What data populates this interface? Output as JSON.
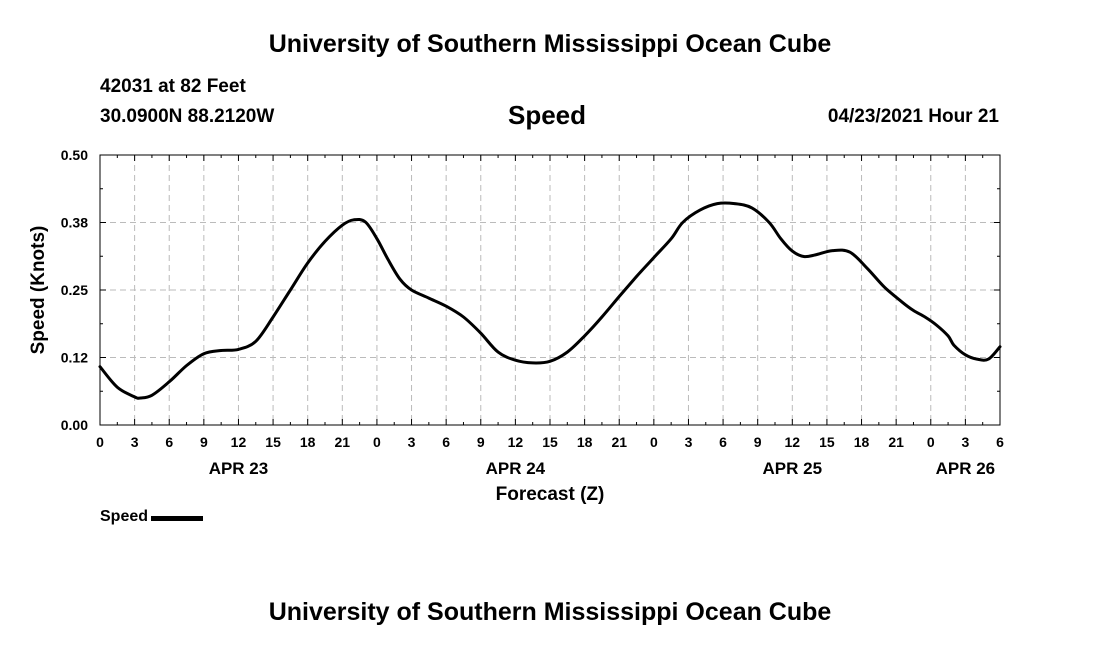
{
  "header": {
    "title": "University of Southern Mississippi Ocean Cube",
    "station": "42031 at 82 Feet",
    "location": "30.0900N  88.2120W",
    "variable": "Speed",
    "datestamp": "04/23/2021 Hour 21"
  },
  "footer": {
    "title": "University of Southern Mississippi Ocean Cube"
  },
  "legend": {
    "label": "Speed"
  },
  "chart_data": {
    "type": "line",
    "title": "Speed",
    "xlabel": "Forecast (Z)",
    "ylabel": "Speed (Knots)",
    "ylim": [
      0,
      0.5
    ],
    "xlim_hours": [
      0,
      78
    ],
    "y_ticks": [
      "0.00",
      "0.12",
      "0.25",
      "0.38",
      "0.50"
    ],
    "y_tick_values": [
      0,
      0.125,
      0.25,
      0.375,
      0.5
    ],
    "x_tick_labels": [
      "0",
      "3",
      "6",
      "9",
      "12",
      "15",
      "18",
      "21",
      "0",
      "3",
      "6",
      "9",
      "12",
      "15",
      "18",
      "21",
      "0",
      "3",
      "6",
      "9",
      "12",
      "15",
      "18",
      "21",
      "0",
      "3",
      "6"
    ],
    "day_labels": [
      {
        "label": "APR 23",
        "at_hour": 12
      },
      {
        "label": "APR 24",
        "at_hour": 36
      },
      {
        "label": "APR 25",
        "at_hour": 60
      },
      {
        "label": "APR 26",
        "at_hour": 75
      }
    ],
    "grid": true,
    "legend_position": "bottom-left",
    "series": [
      {
        "name": "Speed",
        "color": "#000000",
        "x_hours": [
          0,
          1.5,
          3,
          3.5,
          4.5,
          6,
          7.5,
          9,
          10.5,
          12,
          13.5,
          15,
          16.5,
          18,
          19.5,
          21,
          22,
          23,
          24,
          25,
          26,
          27,
          28.5,
          30,
          31.5,
          33,
          34.5,
          36,
          37.5,
          39,
          40.5,
          42,
          43.5,
          45,
          46.5,
          48,
          49.5,
          50.5,
          52,
          53.5,
          55,
          56.5,
          58,
          59,
          60,
          61,
          62,
          63.5,
          65,
          66.5,
          68,
          69.5,
          70.5,
          71.5,
          72.5,
          73.5,
          74,
          75,
          76,
          77,
          78
        ],
        "values": [
          0.108,
          0.07,
          0.052,
          0.05,
          0.055,
          0.08,
          0.11,
          0.132,
          0.138,
          0.14,
          0.155,
          0.2,
          0.25,
          0.3,
          0.34,
          0.37,
          0.38,
          0.376,
          0.345,
          0.305,
          0.27,
          0.25,
          0.235,
          0.22,
          0.2,
          0.17,
          0.135,
          0.12,
          0.115,
          0.118,
          0.135,
          0.165,
          0.2,
          0.238,
          0.275,
          0.31,
          0.345,
          0.375,
          0.398,
          0.41,
          0.41,
          0.402,
          0.375,
          0.345,
          0.322,
          0.312,
          0.315,
          0.323,
          0.32,
          0.29,
          0.255,
          0.228,
          0.212,
          0.2,
          0.185,
          0.165,
          0.148,
          0.13,
          0.122,
          0.122,
          0.145
        ]
      }
    ]
  }
}
